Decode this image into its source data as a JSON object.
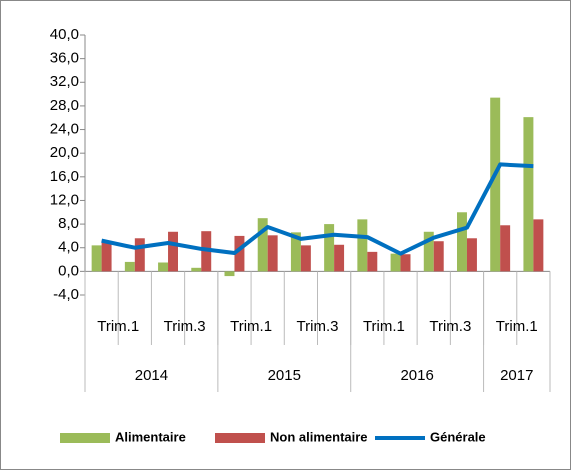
{
  "chart_data": {
    "type": "bar",
    "categories": [
      "Trim.1",
      null,
      "Trim.3",
      null,
      "Trim.1",
      null,
      "Trim.3",
      null,
      "Trim.1",
      null,
      "Trim.3",
      null,
      "Trim.1",
      null
    ],
    "groups": [
      {
        "label": "2014",
        "span": 4
      },
      {
        "label": "2015",
        "span": 4
      },
      {
        "label": "2016",
        "span": 4
      },
      {
        "label": "2017",
        "span": 2
      }
    ],
    "series": [
      {
        "name": "Alimentaire",
        "type": "bar",
        "color": "#9bbb59",
        "values": [
          4.4,
          1.6,
          1.5,
          0.6,
          -0.8,
          9.0,
          6.6,
          8.0,
          8.8,
          3.0,
          6.7,
          10.0,
          29.4,
          26.1
        ]
      },
      {
        "name": "Non alimentaire",
        "type": "bar",
        "color": "#c0504d",
        "values": [
          5.0,
          5.6,
          6.7,
          6.8,
          6.0,
          6.1,
          4.4,
          4.5,
          3.3,
          2.9,
          5.1,
          5.6,
          7.8,
          8.8
        ]
      },
      {
        "name": "Générale",
        "type": "line",
        "color": "#0070c0",
        "values": [
          5.2,
          4.0,
          4.8,
          3.8,
          3.1,
          7.5,
          5.5,
          6.2,
          5.8,
          3.0,
          5.7,
          7.4,
          18.1,
          17.8
        ]
      }
    ],
    "ylim": [
      -4,
      40
    ],
    "yticks": [
      {
        "value": -4,
        "label": "-4,0"
      },
      {
        "value": 0,
        "label": "0,0"
      },
      {
        "value": 4,
        "label": "4,0"
      },
      {
        "value": 8,
        "label": "8,0"
      },
      {
        "value": 12,
        "label": "12,0"
      },
      {
        "value": 16,
        "label": "16,0"
      },
      {
        "value": 20,
        "label": "20,0"
      },
      {
        "value": 24,
        "label": "24,0"
      },
      {
        "value": 28,
        "label": "28,0"
      },
      {
        "value": 32,
        "label": "32,0"
      },
      {
        "value": 36,
        "label": "36,0"
      },
      {
        "value": 40,
        "label": "40,0"
      }
    ],
    "legend": "bottom"
  }
}
